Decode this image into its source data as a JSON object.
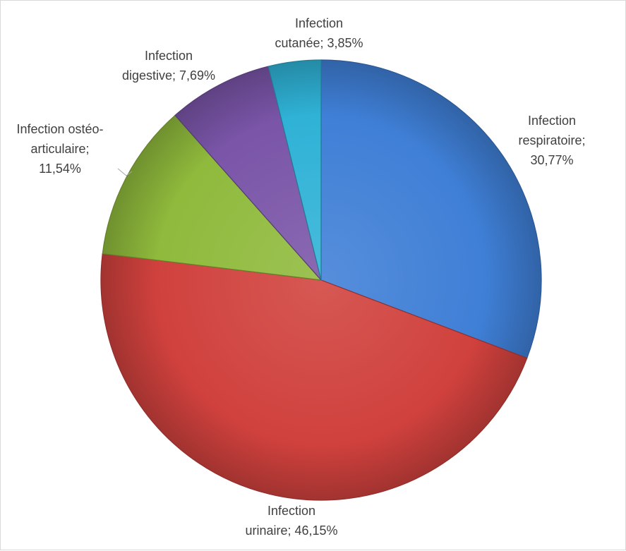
{
  "chart_data": {
    "type": "pie",
    "title": "",
    "start_angle_deg": 0,
    "direction": "clockwise",
    "legend": "none",
    "slices": [
      {
        "category": "Infection respiratoire",
        "value": 30.77,
        "label": "30,77%",
        "label_lines": [
          "Infection",
          "respiratoire;",
          "30,77%"
        ],
        "color": "#3f7fd6"
      },
      {
        "category": "Infection urinaire",
        "value": 46.15,
        "label": "46,15%",
        "label_lines": [
          "Infection",
          "urinaire; 46,15%"
        ],
        "color": "#d0413d"
      },
      {
        "category": "Infection ostéo-articulaire",
        "value": 11.54,
        "label": "11,54%",
        "label_lines": [
          "Infection ostéo-",
          "articulaire;",
          "11,54%"
        ],
        "color": "#8fba3c"
      },
      {
        "category": "Infection digestive",
        "value": 7.69,
        "label": "7,69%",
        "label_lines": [
          "Infection",
          "digestive; 7,69%"
        ],
        "color": "#7a55a8"
      },
      {
        "category": "Infection cutanée",
        "value": 3.85,
        "label": "3,85%",
        "label_lines": [
          "Infection",
          "cutanée; 3,85%"
        ],
        "color": "#2fb2d6"
      }
    ]
  }
}
